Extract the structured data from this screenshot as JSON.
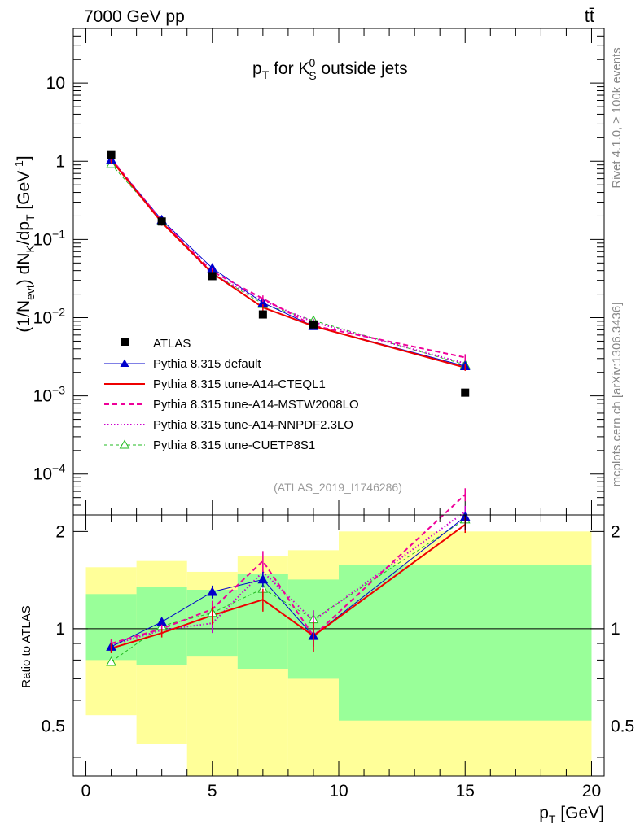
{
  "header": {
    "energy_label": "7000 GeV pp",
    "process_label": "tt̄",
    "side_label_rivet": "Rivet 4.1.0, ≥ 100k events",
    "side_label_mcplots": "mcplots.cern.ch [arXiv:1306.3436]"
  },
  "chart_data": [
    {
      "type": "line",
      "title_main": "p",
      "title_sub": "T",
      "title_rest1": " for K",
      "title_k_sup": "0",
      "title_k_sub": "S",
      "title_rest2": " outside jets",
      "analysis_id": "(ATLAS_2019_I1746286)",
      "yaxis_scale": "log",
      "ylim": [
        3e-05,
        50
      ],
      "xlim": [
        -0.5,
        20.5
      ],
      "ylabel": {
        "p1": "(1/N",
        "s1": "evt",
        "p2": ") dN",
        "s2": "K",
        "p3": "/dp",
        "s3": "T",
        "p4": " [GeV",
        "sup": "-1",
        "p5": "]"
      },
      "y_ticks": [
        {
          "value": 10,
          "label": "10",
          "exp": ""
        },
        {
          "value": 1,
          "label": "1",
          "exp": ""
        },
        {
          "value": 0.1,
          "label": "10",
          "exp": "−1"
        },
        {
          "value": 0.01,
          "label": "10",
          "exp": "−2"
        },
        {
          "value": 0.001,
          "label": "10",
          "exp": "−3"
        },
        {
          "value": 0.0001,
          "label": "10",
          "exp": "−4"
        }
      ],
      "legend": [
        {
          "key": "data",
          "label": "ATLAS"
        },
        {
          "key": "default",
          "label": "Pythia 8.315 default"
        },
        {
          "key": "cteq",
          "label": "Pythia 8.315 tune-A14-CTEQL1"
        },
        {
          "key": "mstw",
          "label": "Pythia 8.315 tune-A14-MSTW2008LO"
        },
        {
          "key": "nnpdf",
          "label": "Pythia 8.315 tune-A14-NNPDF2.3LO"
        },
        {
          "key": "cuetp",
          "label": "Pythia 8.315 tune-CUETP8S1"
        }
      ],
      "data": {
        "name": "ATLAS",
        "x": [
          1,
          3,
          5,
          7,
          9,
          15
        ],
        "y": [
          1.2,
          0.17,
          0.034,
          0.011,
          0.0082,
          0.0011
        ]
      },
      "series": [
        {
          "key": "default",
          "name": "Pythia 8.315 default",
          "color": "#0000cc",
          "x": [
            1,
            3,
            5,
            7,
            9,
            15
          ],
          "y": [
            1.05,
            0.178,
            0.043,
            0.0155,
            0.0078,
            0.0024
          ]
        },
        {
          "key": "cteq",
          "name": "Pythia 8.315 tune-A14-CTEQL1",
          "color": "#ee0000",
          "x": [
            1,
            3,
            5,
            7,
            9,
            15
          ],
          "y": [
            1.04,
            0.165,
            0.037,
            0.0135,
            0.0078,
            0.0023
          ]
        },
        {
          "key": "mstw",
          "name": "Pythia 8.315 tune-A14-MSTW2008LO",
          "color": "#ee0099",
          "x": [
            1,
            3,
            5,
            7,
            9,
            15
          ],
          "y": [
            1.08,
            0.172,
            0.039,
            0.0175,
            0.0079,
            0.0031
          ]
        },
        {
          "key": "nnpdf",
          "name": "Pythia 8.315 tune-A14-NNPDF2.3LO",
          "color": "#cc00cc",
          "x": [
            1,
            3,
            5,
            7,
            9,
            15
          ],
          "y": [
            1.06,
            0.17,
            0.036,
            0.0165,
            0.0088,
            0.0026
          ]
        },
        {
          "key": "cuetp",
          "name": "Pythia 8.315 tune-CUETP8S1",
          "color": "#22bb22",
          "x": [
            1,
            3,
            5,
            7,
            9,
            15
          ],
          "y": [
            0.92,
            0.172,
            0.037,
            0.015,
            0.0092,
            0.0025
          ]
        }
      ]
    },
    {
      "type": "line",
      "ylabel": "Ratio to ATLAS",
      "xlabel_main": "p",
      "xlabel_sub": "T",
      "xlabel_rest": " [GeV]",
      "xlim": [
        -0.5,
        20.5
      ],
      "ylim": [
        0.35,
        2.25
      ],
      "x_ticks": [
        0,
        5,
        10,
        15,
        20
      ],
      "y_ticks": [
        0.5,
        1,
        2
      ],
      "bands": [
        {
          "x0": 0,
          "x1": 2,
          "yellow": [
            0.54,
            1.55
          ],
          "green": [
            0.8,
            1.28
          ]
        },
        {
          "x0": 2,
          "x1": 4,
          "yellow": [
            0.44,
            1.62
          ],
          "green": [
            0.77,
            1.35
          ]
        },
        {
          "x0": 4,
          "x1": 6,
          "yellow": [
            0.35,
            1.5
          ],
          "green": [
            0.82,
            1.32
          ]
        },
        {
          "x0": 6,
          "x1": 8,
          "yellow": [
            0.35,
            1.68
          ],
          "green": [
            0.75,
            1.48
          ]
        },
        {
          "x0": 8,
          "x1": 10,
          "yellow": [
            0.35,
            1.75
          ],
          "green": [
            0.7,
            1.42
          ]
        },
        {
          "x0": 10,
          "x1": 20,
          "yellow": [
            0.35,
            2.0
          ],
          "green": [
            0.52,
            1.58
          ]
        }
      ],
      "series": [
        {
          "key": "default",
          "name": "Pythia 8.315 default",
          "color": "#0000cc",
          "x": [
            1,
            3,
            5,
            7,
            9,
            15
          ],
          "y": [
            0.88,
            1.05,
            1.3,
            1.42,
            0.95,
            2.22
          ],
          "err": [
            0.03,
            0.03,
            0.06,
            0.08,
            0.07,
            0.08
          ]
        },
        {
          "key": "cteq",
          "name": "Pythia 8.315 tune-A14-CTEQL1",
          "color": "#ee0000",
          "x": [
            1,
            3,
            5,
            7,
            9,
            15
          ],
          "y": [
            0.87,
            0.97,
            1.1,
            1.23,
            0.95,
            2.1
          ],
          "err": [
            0.03,
            0.03,
            0.07,
            0.1,
            0.1,
            0.12
          ]
        },
        {
          "key": "mstw",
          "name": "Pythia 8.315 tune-A14-MSTW2008LO",
          "color": "#ee0099",
          "x": [
            1,
            3,
            5,
            7,
            9,
            15
          ],
          "y": [
            0.9,
            1.0,
            1.15,
            1.62,
            0.95,
            2.6
          ],
          "err": [
            0.03,
            0.03,
            0.07,
            0.12,
            0.1,
            0.12
          ]
        },
        {
          "key": "nnpdf",
          "name": "Pythia 8.315 tune-A14-NNPDF2.3LO",
          "color": "#cc00cc",
          "x": [
            1,
            3,
            5,
            7,
            9,
            15
          ],
          "y": [
            0.89,
            0.99,
            1.04,
            1.5,
            1.06,
            2.3
          ],
          "err": [
            0.03,
            0.03,
            0.07,
            0.1,
            0.08,
            0.1
          ]
        },
        {
          "key": "cuetp",
          "name": "Pythia 8.315 tune-CUETP8S1",
          "color": "#22bb22",
          "x": [
            1,
            3,
            5,
            7,
            9,
            15
          ],
          "y": [
            0.79,
            1.02,
            1.12,
            1.33,
            1.07,
            2.18
          ],
          "err": [
            0.0,
            0.03,
            0.07,
            0.08,
            0.07,
            0.08
          ]
        }
      ]
    }
  ]
}
